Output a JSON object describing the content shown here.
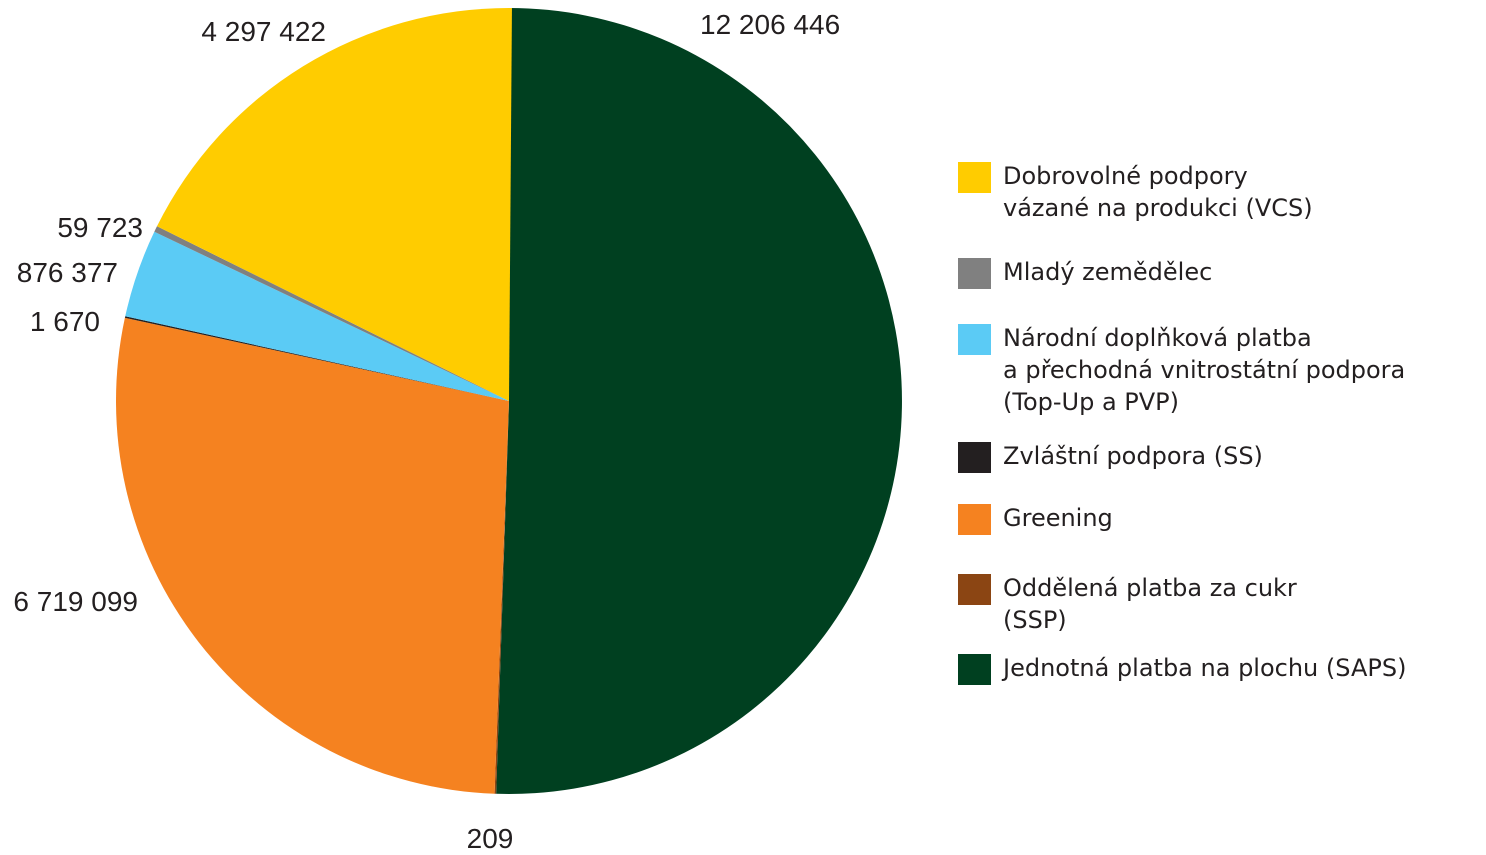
{
  "chart_data": {
    "type": "pie",
    "start_angle": "12 o'clock",
    "direction": "clockwise",
    "slices": [
      {
        "label": "Jednotná platba na plochu (SAPS)",
        "value": 12206446,
        "value_text": "12 206 446",
        "color": "#004020"
      },
      {
        "label": "Oddělená platba za cukr\n(SSP)",
        "value": 209,
        "value_text": "209",
        "color": "#8B4513"
      },
      {
        "label": "Greening",
        "value": 6719099,
        "value_text": "6 719 099",
        "color": "#F58220"
      },
      {
        "label": "Zvláštní podpora (SS)",
        "value": 1670,
        "value_text": "1 670",
        "color": "#231F20"
      },
      {
        "label": "Národní doplňková platba\na přechodná vnitrostátní podpora\n(Top-Up a PVP)",
        "value": 876377,
        "value_text": "876 377",
        "color": "#5BCBF5"
      },
      {
        "label": "Mladý zemědělec",
        "value": 59723,
        "value_text": "59 723",
        "color": "#808080"
      },
      {
        "label": "Dobrovolné podpory\nvázané na produkci (VCS)",
        "value": 4297422,
        "value_text": "4 297 422",
        "color": "#FFCC00"
      }
    ],
    "legend_order": [
      6,
      5,
      4,
      3,
      2,
      1,
      0
    ],
    "legend_position": "right"
  }
}
